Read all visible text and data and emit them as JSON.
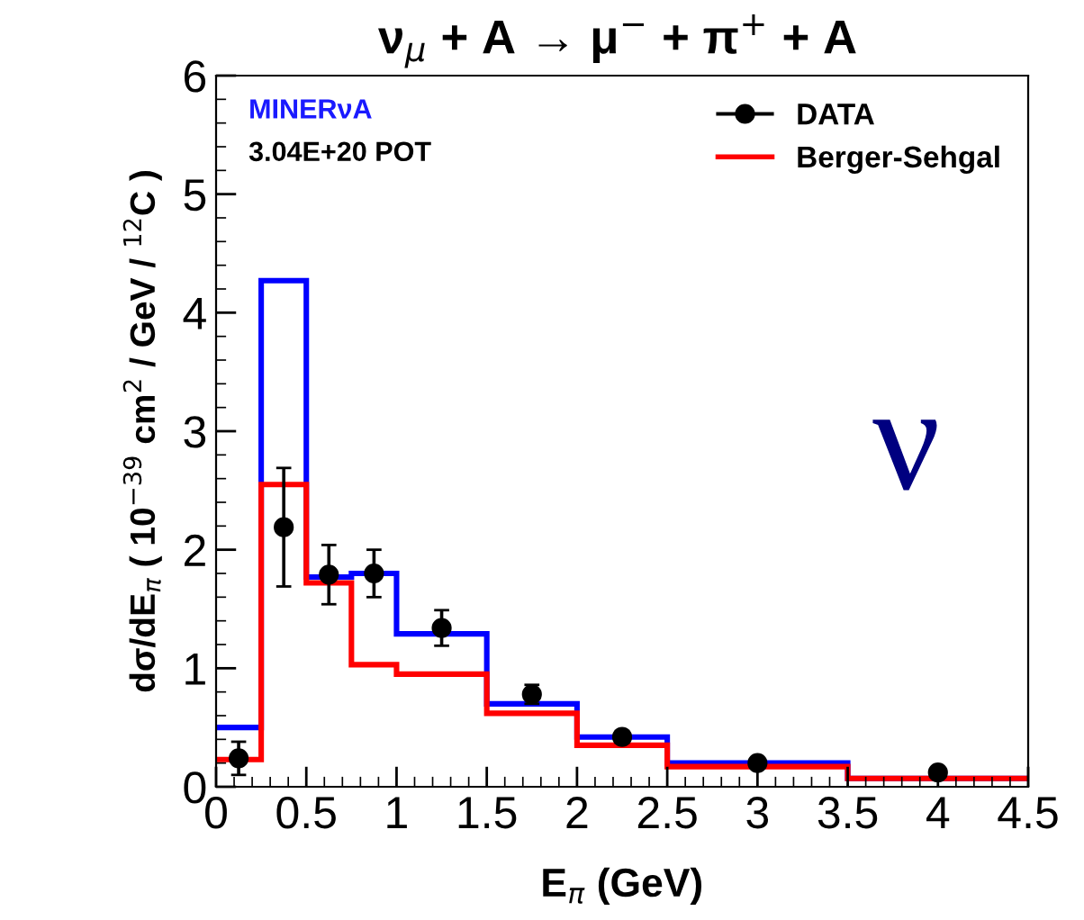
{
  "chart_data": {
    "type": "histogram",
    "title": "ν$_{μ}$ + A → μ$^{−}$ + π$^{+}$ + A",
    "xlabel": "E$_{π}$ (GeV)",
    "ylabel": "dσ/dE$_{π}$ ( 10$^{−39}$ cm$^{2}$ / GeV / $^{12}$C )",
    "bins": [
      0,
      0.25,
      0.5,
      0.75,
      1.0,
      1.5,
      2.0,
      2.5,
      3.5,
      4.5
    ],
    "series": [
      {
        "type": "scatter",
        "name": "DATA",
        "color": "#000000",
        "marker": "circle",
        "x": [
          0.125,
          0.375,
          0.625,
          0.875,
          1.25,
          1.75,
          2.25,
          3.0,
          4.0
        ],
        "values": [
          0.24,
          2.19,
          1.79,
          1.8,
          1.34,
          0.78,
          0.42,
          0.2,
          0.12
        ],
        "errors": [
          0.14,
          0.5,
          0.25,
          0.2,
          0.15,
          0.08,
          0.05,
          null,
          null
        ]
      },
      {
        "color": "#0000ff",
        "values": [
          0.5,
          4.27,
          1.77,
          1.8,
          1.29,
          0.7,
          0.42,
          0.2,
          0.07
        ]
      },
      {
        "name": "Berger-Sehgal",
        "color": "#ff0000",
        "values": [
          0.23,
          2.55,
          1.72,
          1.03,
          0.95,
          0.62,
          0.35,
          0.17,
          0.07
        ]
      }
    ],
    "annotations": [
      "MINERνA",
      "3.04E+20 POT",
      "ν"
    ],
    "xlim": [
      0,
      4.5
    ],
    "ylim": [
      0,
      6
    ],
    "xticks": [
      0,
      0.5,
      1,
      1.5,
      2,
      2.5,
      3,
      3.5,
      4,
      4.5
    ],
    "yticks": [
      0,
      1,
      2,
      3,
      4,
      5,
      6
    ],
    "legend": "top right"
  }
}
